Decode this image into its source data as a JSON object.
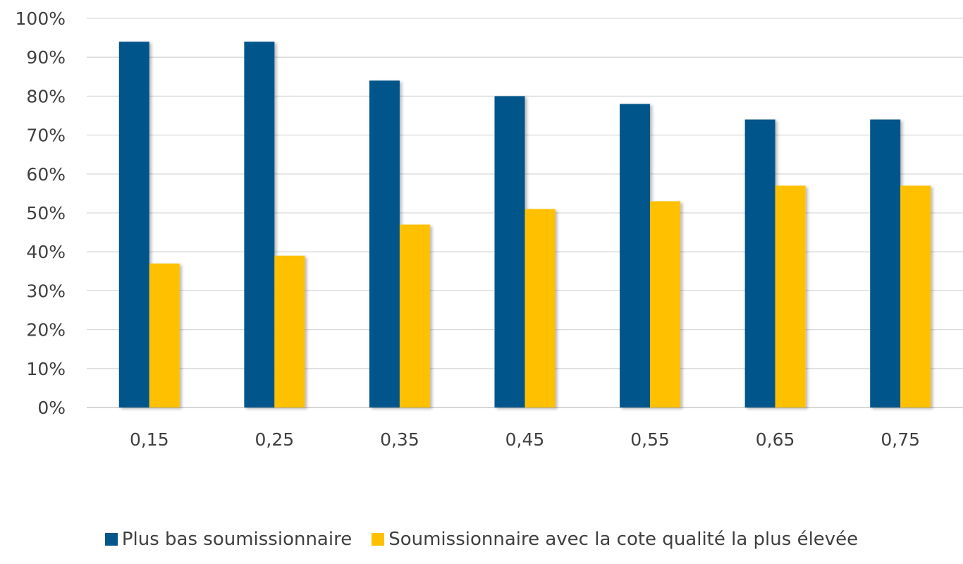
{
  "chart_data": {
    "type": "bar",
    "categories": [
      "0,15",
      "0,25",
      "0,35",
      "0,45",
      "0,55",
      "0,65",
      "0,75"
    ],
    "series": [
      {
        "name": "Plus bas soumissionnaire",
        "color": "#02578A",
        "values": [
          94,
          94,
          84,
          80,
          78,
          74,
          74
        ]
      },
      {
        "name": "Soumissionnaire avec la cote qualité la plus élevée",
        "color": "#FFC000",
        "values": [
          37,
          39,
          47,
          51,
          53,
          57,
          57
        ]
      }
    ],
    "y_ticks": [
      "0%",
      "10%",
      "20%",
      "30%",
      "40%",
      "50%",
      "60%",
      "70%",
      "80%",
      "90%",
      "100%"
    ],
    "ylim": [
      0,
      100
    ],
    "grid": true,
    "legend_position": "bottom"
  }
}
